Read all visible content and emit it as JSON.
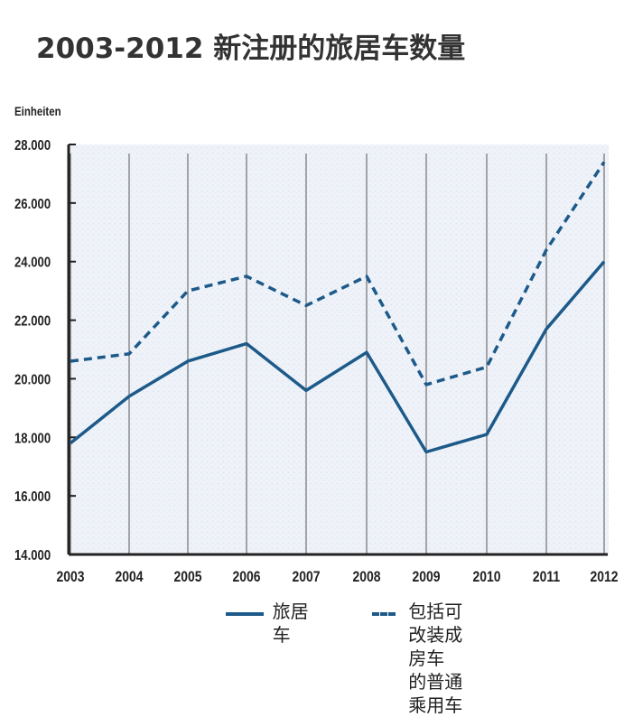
{
  "page": {
    "title": "2003-2012 新注册的旅居车数量"
  },
  "chart_data": {
    "type": "line",
    "ylabel": "Einheiten",
    "ylim": [
      14000,
      28000
    ],
    "yticks": [
      14000,
      16000,
      18000,
      20000,
      22000,
      24000,
      26000,
      28000
    ],
    "ytick_labels": [
      "14.000",
      "16.000",
      "18.000",
      "20.000",
      "22.000",
      "24.000",
      "26.000",
      "28.000"
    ],
    "categories": [
      "2003",
      "2004",
      "2005",
      "2006",
      "2007",
      "2008",
      "2009",
      "2010",
      "2011",
      "2012"
    ],
    "series": [
      {
        "name": "旅居车",
        "style": "solid",
        "color": "#1d5a8a",
        "values": [
          17800,
          19400,
          20600,
          21200,
          19600,
          20900,
          17500,
          18100,
          21700,
          24000
        ]
      },
      {
        "name": "包括可改装成房车的普通乘用车",
        "style": "dashed",
        "color": "#1d5a8a",
        "values": [
          20600,
          20850,
          23000,
          23500,
          22500,
          23500,
          19800,
          20400,
          24400,
          27400
        ]
      }
    ],
    "grid": "vertical lines at each year",
    "legend_position": "bottom-right"
  },
  "legend": {
    "solid_label": "旅居车",
    "dashed_label": "包括可改装成房车\n的普通乘用车"
  }
}
